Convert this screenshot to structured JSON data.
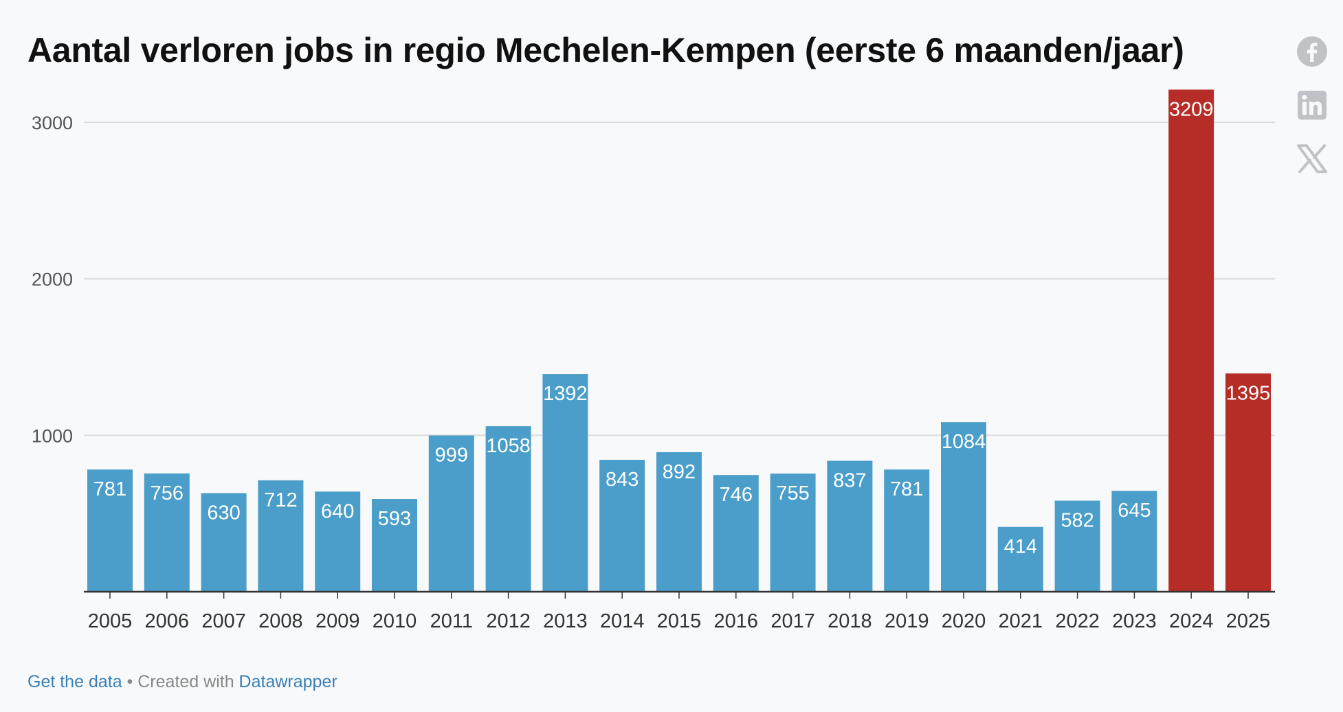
{
  "header": {
    "title": "Aantal verloren jobs in regio Mechelen-Kempen (eerste 6 maanden/jaar)"
  },
  "share": {
    "facebook_icon": "facebook-icon",
    "linkedin_icon": "linkedin-icon",
    "x_icon": "x-twitter-icon"
  },
  "footer": {
    "get_data": "Get the data",
    "separator": " • Created with ",
    "tool": "Datawrapper"
  },
  "colors": {
    "default_bar": "#4a9ec9",
    "highlight_bar": "#b52d26"
  },
  "chart_data": {
    "type": "bar",
    "title": "Aantal verloren jobs in regio Mechelen-Kempen (eerste 6 maanden/jaar)",
    "xlabel": "",
    "ylabel": "",
    "categories": [
      "2005",
      "2006",
      "2007",
      "2008",
      "2009",
      "2010",
      "2011",
      "2012",
      "2013",
      "2014",
      "2015",
      "2016",
      "2017",
      "2018",
      "2019",
      "2020",
      "2021",
      "2022",
      "2023",
      "2024",
      "2025"
    ],
    "values": [
      781,
      756,
      630,
      712,
      640,
      593,
      999,
      1058,
      1392,
      843,
      892,
      746,
      755,
      837,
      781,
      1084,
      414,
      582,
      645,
      3209,
      1395
    ],
    "highlighted": [
      "2024",
      "2025"
    ],
    "yticks": [
      1000,
      2000,
      3000
    ],
    "ylim": [
      0,
      3209
    ],
    "grid": true,
    "legend": "none"
  }
}
